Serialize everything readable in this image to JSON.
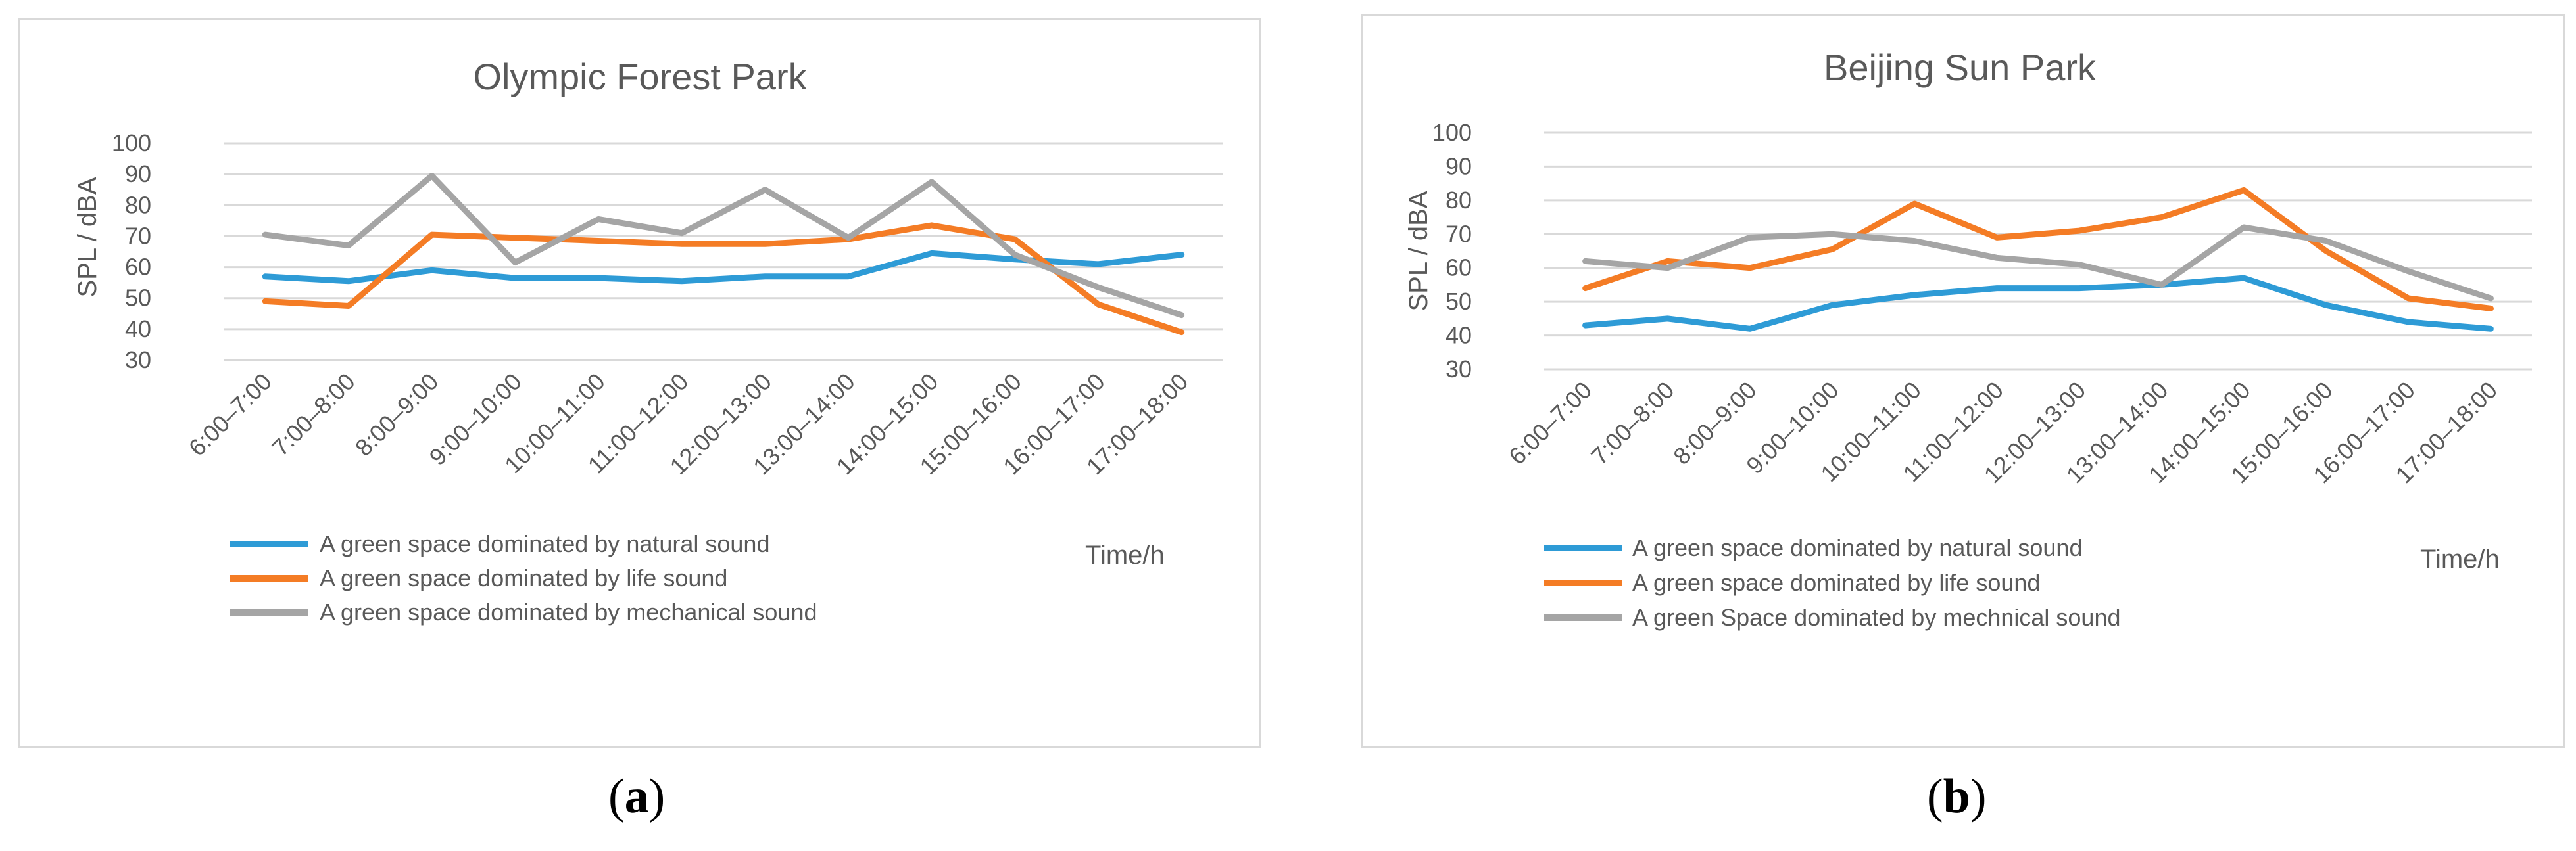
{
  "captions": [
    "a",
    "b"
  ],
  "colors": {
    "natural": "#2e9bd6",
    "life": "#f47c25",
    "mechanical": "#a5a5a5",
    "grid": "#d9d9d9",
    "text": "#595959"
  },
  "chart_data": [
    {
      "type": "line",
      "title": "Olympic Forest Park",
      "ylabel": "SPL / dBA",
      "xlabel": "Time/h",
      "ylim": [
        30,
        100
      ],
      "yticks": [
        "30",
        "40",
        "50",
        "60",
        "70",
        "80",
        "90",
        "100"
      ],
      "grid": true,
      "legend_position": "bottom-left",
      "categories": [
        "6:00–7:00",
        "7:00–8:00",
        "8:00–9:00",
        "9:00–10:00",
        "10:00–11:00",
        "11:00–12:00",
        "12:00–13:00",
        "13:00–14:00",
        "14:00–15:00",
        "15:00–16:00",
        "16:00–17:00",
        "17:00–18:00"
      ],
      "series": [
        {
          "name": "A green space dominated by natural sound",
          "color": "#2e9bd6",
          "values": [
            57,
            55.5,
            59,
            56.5,
            56.5,
            55.5,
            57,
            57,
            64.5,
            62.5,
            61,
            64
          ]
        },
        {
          "name": "A green space dominated by life sound",
          "color": "#f47c25",
          "values": [
            49,
            47.5,
            70.5,
            69.5,
            68.5,
            67.5,
            67.5,
            69,
            73.5,
            69,
            48,
            39
          ]
        },
        {
          "name": "A green space dominated by mechanical sound",
          "color": "#a5a5a5",
          "values": [
            70.5,
            67,
            89.5,
            61.5,
            75.5,
            71,
            85,
            69.5,
            87.5,
            64,
            53.5,
            44.5
          ]
        }
      ]
    },
    {
      "type": "line",
      "title": "Beijing Sun Park",
      "ylabel": "SPL / dBA",
      "xlabel": "Time/h",
      "ylim": [
        30,
        100
      ],
      "yticks": [
        "30",
        "40",
        "50",
        "60",
        "70",
        "80",
        "90",
        "100"
      ],
      "grid": true,
      "legend_position": "bottom-left",
      "categories": [
        "6:00–7:00",
        "7:00–8:00",
        "8:00–9:00",
        "9:00–10:00",
        "10:00–11:00",
        "11:00–12:00",
        "12:00–13:00",
        "13:00–14:00",
        "14:00–15:00",
        "15:00–16:00",
        "16:00–17:00",
        "17:00–18:00"
      ],
      "series": [
        {
          "name": "A green space dominated by natural sound",
          "color": "#2e9bd6",
          "values": [
            43,
            45,
            42,
            49,
            52,
            54,
            54,
            55,
            57,
            49,
            44,
            42
          ]
        },
        {
          "name": "A green space dominated by life sound",
          "color": "#f47c25",
          "values": [
            54,
            62,
            60,
            65.5,
            79,
            69,
            71,
            75,
            83,
            65,
            51,
            48
          ]
        },
        {
          "name": "A green Space dominated by mechnical sound",
          "color": "#a5a5a5",
          "values": [
            62,
            60,
            69,
            70,
            68,
            63,
            61,
            55,
            72,
            68,
            59,
            51
          ]
        }
      ]
    }
  ]
}
